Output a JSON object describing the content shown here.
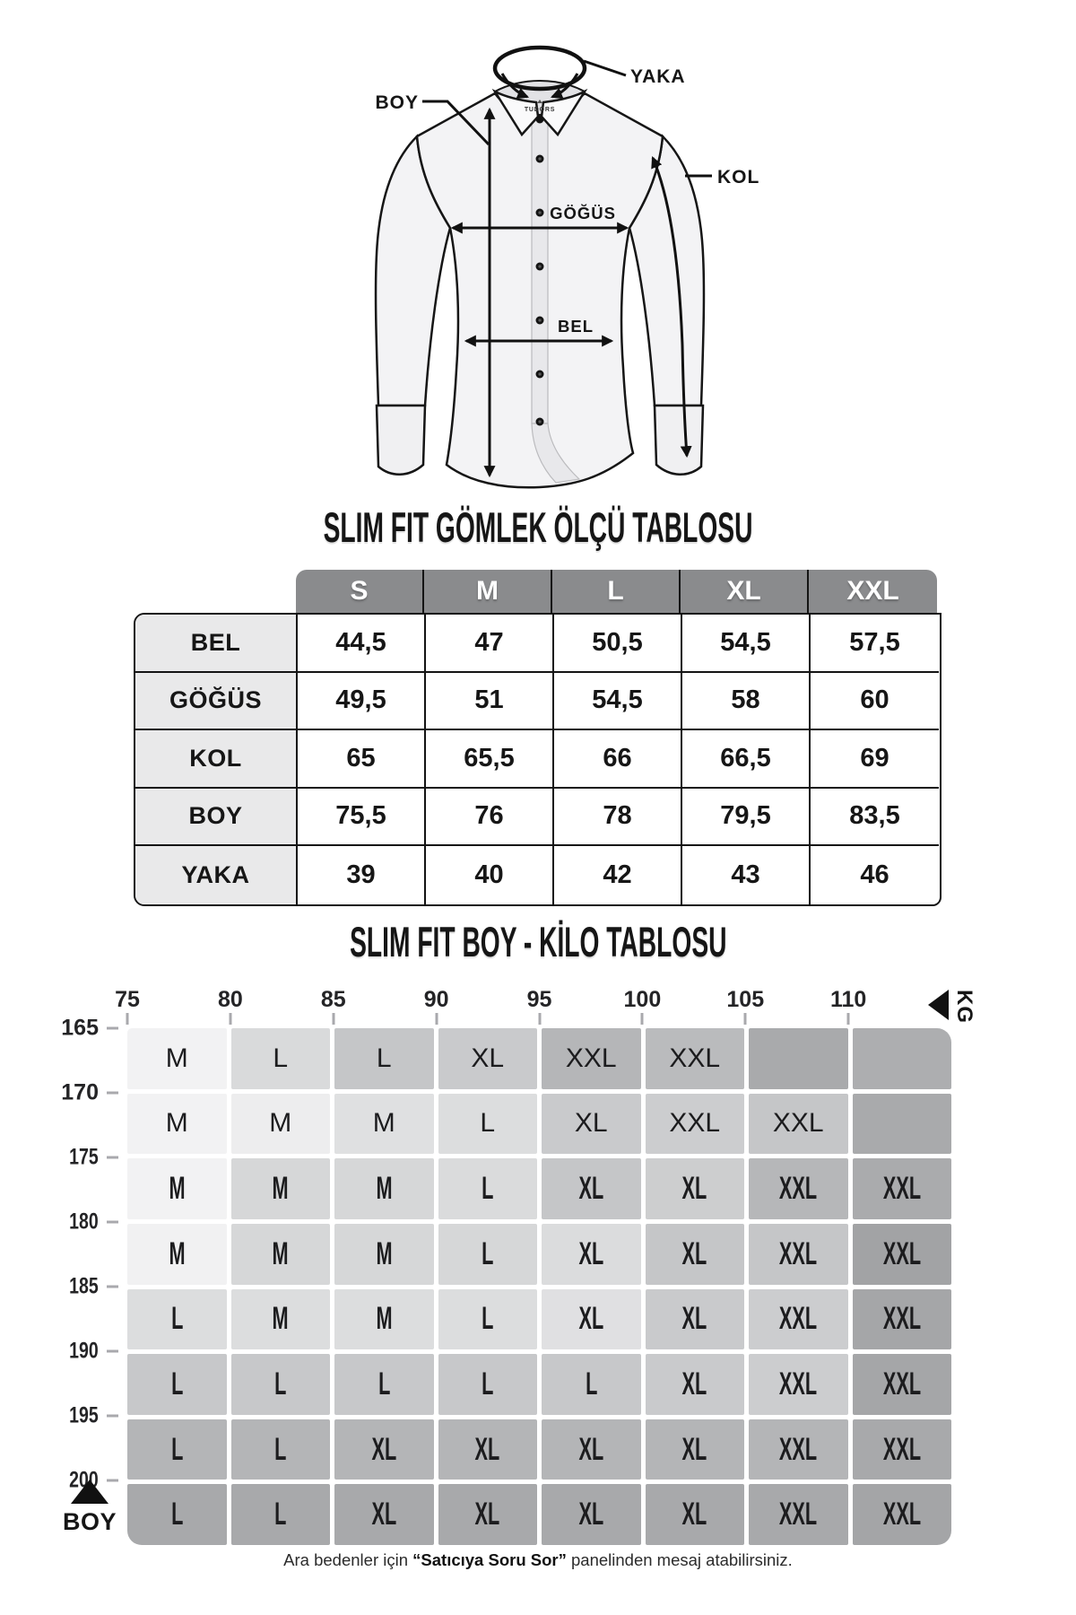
{
  "figure": {
    "brand": "TUDORS",
    "labels": {
      "yaka": "YAKA",
      "boy": "BOY",
      "kol": "KOL",
      "gogus": "GÖĞÜS",
      "bel": "BEL"
    }
  },
  "sections": {
    "measure_table_title": "SLIM FIT GÖMLEK ÖLÇÜ TABLOSU",
    "weight_height_title": "SLIM FIT BOY - KİLO TABLOSU"
  },
  "colors": {
    "table_header_bg": "#8a8b8d",
    "table_label_bg": "#e9e9ea",
    "tick_gray": "#a9a9ad"
  },
  "size_table": {
    "columns": [
      "S",
      "M",
      "L",
      "XL",
      "XXL"
    ],
    "rows": [
      {
        "label": "BEL",
        "values": [
          "44,5",
          "47",
          "50,5",
          "54,5",
          "57,5"
        ]
      },
      {
        "label": "GÖĞÜS",
        "values": [
          "49,5",
          "51",
          "54,5",
          "58",
          "60"
        ]
      },
      {
        "label": "KOL",
        "values": [
          "65",
          "65,5",
          "66",
          "66,5",
          "69"
        ]
      },
      {
        "label": "BOY",
        "values": [
          "75,5",
          "76",
          "78",
          "79,5",
          "83,5"
        ]
      },
      {
        "label": "YAKA",
        "values": [
          "39",
          "40",
          "42",
          "43",
          "46"
        ]
      }
    ]
  },
  "chart_data": {
    "type": "heatmap",
    "title": "SLIM FIT BOY - KİLO TABLOSU",
    "x_axis": {
      "label": "KG",
      "ticks": [
        75,
        80,
        85,
        90,
        95,
        100,
        105,
        110
      ]
    },
    "y_axis": {
      "label": "BOY",
      "ticks": [
        165,
        170,
        175,
        180,
        185,
        190,
        195,
        200
      ]
    },
    "grid": "8x8 cells, weight bands (columns) x height bands (rows), cell value = recommended size",
    "cells": [
      [
        {
          "size": "M",
          "color": "#f2f2f3"
        },
        {
          "size": "L",
          "color": "#d9dadb"
        },
        {
          "size": "L",
          "color": "#c5c6c8"
        },
        {
          "size": "XL",
          "color": "#c9cacc"
        },
        {
          "size": "XXL",
          "color": "#b5b6b8"
        },
        {
          "size": "XXL",
          "color": "#babbbd"
        },
        {
          "size": "",
          "color": "#a9aaac"
        },
        {
          "size": "",
          "color": "#adaeb0"
        }
      ],
      [
        {
          "size": "M",
          "color": "#f2f2f3"
        },
        {
          "size": "M",
          "color": "#ededee"
        },
        {
          "size": "M",
          "color": "#dfe0e1"
        },
        {
          "size": "L",
          "color": "#dcddde"
        },
        {
          "size": "XL",
          "color": "#c9cacc"
        },
        {
          "size": "XXL",
          "color": "#cccdcf"
        },
        {
          "size": "XXL",
          "color": "#c5c6c8"
        },
        {
          "size": "",
          "color": "#a9aaac"
        }
      ],
      [
        {
          "size": "M",
          "color": "#f2f2f3"
        },
        {
          "size": "M",
          "color": "#d6d7d8"
        },
        {
          "size": "M",
          "color": "#d6d7d8"
        },
        {
          "size": "L",
          "color": "#dadbdc"
        },
        {
          "size": "XL",
          "color": "#c5c6c8"
        },
        {
          "size": "XL",
          "color": "#cdcecf"
        },
        {
          "size": "XXL",
          "color": "#b6b7b9"
        },
        {
          "size": "XXL",
          "color": "#aaabad"
        }
      ],
      [
        {
          "size": "M",
          "color": "#f1f1f2"
        },
        {
          "size": "M",
          "color": "#d6d7d8"
        },
        {
          "size": "M",
          "color": "#d6d7d8"
        },
        {
          "size": "L",
          "color": "#d6d7d8"
        },
        {
          "size": "XL",
          "color": "#dbdcdd"
        },
        {
          "size": "XL",
          "color": "#c5c6c8"
        },
        {
          "size": "XXL",
          "color": "#c5c6c8"
        },
        {
          "size": "XXL",
          "color": "#a2a3a5"
        }
      ],
      [
        {
          "size": "L",
          "color": "#dcddde"
        },
        {
          "size": "M",
          "color": "#dcddde"
        },
        {
          "size": "M",
          "color": "#dcddde"
        },
        {
          "size": "L",
          "color": "#dcddde"
        },
        {
          "size": "XL",
          "color": "#e0e0e2"
        },
        {
          "size": "XL",
          "color": "#c9cacc"
        },
        {
          "size": "XXL",
          "color": "#cccdcf"
        },
        {
          "size": "XXL",
          "color": "#a5a6a8"
        }
      ],
      [
        {
          "size": "L",
          "color": "#c7c8ca"
        },
        {
          "size": "L",
          "color": "#c7c8ca"
        },
        {
          "size": "L",
          "color": "#c7c8ca"
        },
        {
          "size": "L",
          "color": "#c7c8ca"
        },
        {
          "size": "L",
          "color": "#c7c8ca"
        },
        {
          "size": "XL",
          "color": "#c9cacc"
        },
        {
          "size": "XXL",
          "color": "#cccdcf"
        },
        {
          "size": "XXL",
          "color": "#a5a6a8"
        }
      ],
      [
        {
          "size": "L",
          "color": "#b4b5b7"
        },
        {
          "size": "L",
          "color": "#b4b5b7"
        },
        {
          "size": "XL",
          "color": "#b4b5b7"
        },
        {
          "size": "XL",
          "color": "#b4b5b7"
        },
        {
          "size": "XL",
          "color": "#b4b5b7"
        },
        {
          "size": "XL",
          "color": "#b4b5b7"
        },
        {
          "size": "XXL",
          "color": "#b4b5b7"
        },
        {
          "size": "XXL",
          "color": "#a8a9ab"
        }
      ],
      [
        {
          "size": "L",
          "color": "#a8a9ab"
        },
        {
          "size": "L",
          "color": "#a8a9ab"
        },
        {
          "size": "XL",
          "color": "#a8a9ab"
        },
        {
          "size": "XL",
          "color": "#a8a9ab"
        },
        {
          "size": "XL",
          "color": "#a8a9ab"
        },
        {
          "size": "XL",
          "color": "#a8a9ab"
        },
        {
          "size": "XXL",
          "color": "#a8a9ab"
        },
        {
          "size": "XXL",
          "color": "#a4a5a7"
        }
      ]
    ]
  },
  "footer": {
    "prefix": "Ara bedenler için ",
    "emphasis": "“Satıcıya Soru Sor”",
    "suffix": " panelinden mesaj atabilirsiniz."
  }
}
